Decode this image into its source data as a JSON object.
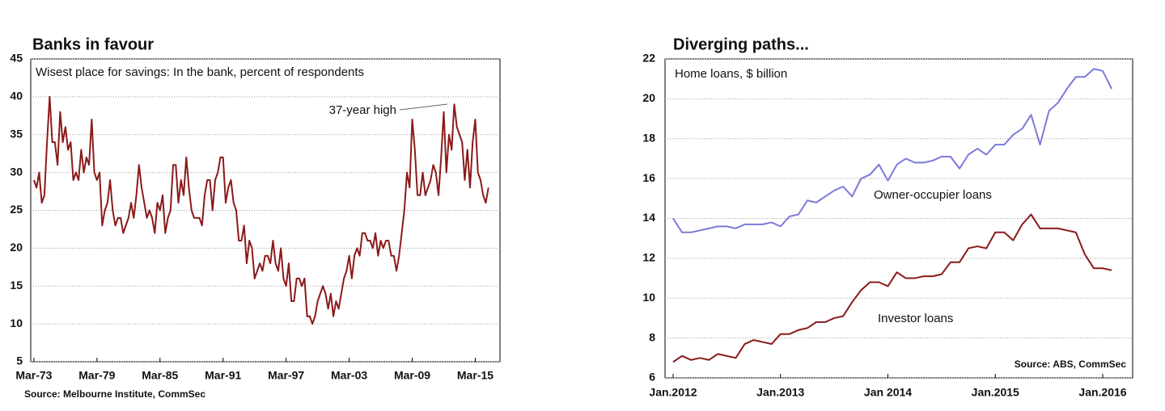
{
  "chart_data": [
    {
      "type": "line",
      "title": "Banks in favour",
      "subtitle": "Wisest place for savings: In the bank, percent of respondents",
      "annotation": "37-year high",
      "source": "Source: Melbourne Institute, CommSec",
      "color": "#8b1a1a",
      "grid": true,
      "xlim": [
        1972.95,
        2017.6
      ],
      "xticks": [
        {
          "value": 1973.25,
          "label": "Mar-73"
        },
        {
          "value": 1979.25,
          "label": "Mar-79"
        },
        {
          "value": 1985.25,
          "label": "Mar-85"
        },
        {
          "value": 1991.25,
          "label": "Mar-91"
        },
        {
          "value": 1997.25,
          "label": "Mar-97"
        },
        {
          "value": 2003.25,
          "label": "Mar-03"
        },
        {
          "value": 2009.25,
          "label": "Mar-09"
        },
        {
          "value": 2015.25,
          "label": "Mar-15"
        }
      ],
      "ylim": [
        5,
        45
      ],
      "yticks": [
        5,
        10,
        15,
        20,
        25,
        30,
        35,
        40,
        45
      ],
      "x": [
        1973.25,
        1973.5,
        1973.75,
        1974,
        1974.25,
        1974.5,
        1974.75,
        1975,
        1975.25,
        1975.5,
        1975.75,
        1976,
        1976.25,
        1976.5,
        1976.75,
        1977,
        1977.25,
        1977.5,
        1977.75,
        1978,
        1978.25,
        1978.5,
        1978.75,
        1979,
        1979.25,
        1979.5,
        1979.75,
        1980,
        1980.25,
        1980.5,
        1980.75,
        1981,
        1981.25,
        1981.5,
        1981.75,
        1982,
        1982.25,
        1982.5,
        1982.75,
        1983,
        1983.25,
        1983.5,
        1983.75,
        1984,
        1984.25,
        1984.5,
        1984.75,
        1985,
        1985.25,
        1985.5,
        1985.75,
        1986,
        1986.25,
        1986.5,
        1986.75,
        1987,
        1987.25,
        1987.5,
        1987.75,
        1988,
        1988.25,
        1988.5,
        1988.75,
        1989,
        1989.25,
        1989.5,
        1989.75,
        1990,
        1990.25,
        1990.5,
        1990.75,
        1991,
        1991.25,
        1991.5,
        1991.75,
        1992,
        1992.25,
        1992.5,
        1992.75,
        1993,
        1993.25,
        1993.5,
        1993.75,
        1994,
        1994.25,
        1994.5,
        1994.75,
        1995,
        1995.25,
        1995.5,
        1995.75,
        1996,
        1996.25,
        1996.5,
        1996.75,
        1997,
        1997.25,
        1997.5,
        1997.75,
        1998,
        1998.25,
        1998.5,
        1998.75,
        1999,
        1999.25,
        1999.5,
        1999.75,
        2000,
        2000.25,
        2000.5,
        2000.75,
        2001,
        2001.25,
        2001.5,
        2001.75,
        2002,
        2002.25,
        2002.5,
        2002.75,
        2003,
        2003.25,
        2003.5,
        2003.75,
        2004,
        2004.25,
        2004.5,
        2004.75,
        2005,
        2005.25,
        2005.5,
        2005.75,
        2006,
        2006.25,
        2006.5,
        2006.75,
        2007,
        2007.25,
        2007.5,
        2007.75,
        2008,
        2008.25,
        2008.5,
        2008.75,
        2009,
        2009.25,
        2009.5,
        2009.75,
        2010,
        2010.25,
        2010.5,
        2010.75,
        2011,
        2011.25,
        2011.5,
        2011.75,
        2012,
        2012.25,
        2012.5,
        2012.75,
        2013,
        2013.25,
        2013.5,
        2013.75,
        2014,
        2014.25,
        2014.5,
        2014.75,
        2015,
        2015.25,
        2015.5,
        2015.75,
        2016,
        2016.25,
        2016.5
      ],
      "values": [
        29,
        28,
        30,
        26,
        27,
        34,
        40,
        34,
        34,
        31,
        38,
        34,
        36,
        33,
        34,
        29,
        30,
        29,
        33,
        30,
        32,
        31,
        37,
        30,
        29,
        30,
        23,
        25,
        26,
        29,
        25,
        23,
        24,
        24,
        22,
        23,
        24,
        26,
        24,
        27,
        31,
        28,
        26,
        24,
        25,
        24,
        22,
        26,
        25,
        27,
        22,
        24,
        25,
        31,
        31,
        26,
        29,
        27,
        32,
        28,
        25,
        24,
        24,
        24,
        23,
        27,
        29,
        29,
        25,
        29,
        30,
        32,
        32,
        26,
        28,
        29,
        26,
        25,
        21,
        21,
        23,
        18,
        21,
        20,
        16,
        17,
        18,
        17,
        19,
        19,
        18,
        21,
        18,
        17,
        20,
        16,
        15,
        18,
        13,
        13,
        16,
        16,
        15,
        16,
        11,
        11,
        10,
        11,
        13,
        14,
        15,
        14,
        12,
        14,
        11,
        13,
        12,
        14,
        16,
        17,
        19,
        16,
        19,
        20,
        19,
        22,
        22,
        21,
        21,
        20,
        22,
        19,
        21,
        20,
        21,
        21,
        19,
        19,
        17,
        19,
        22,
        25,
        30,
        28,
        37,
        33,
        27,
        27,
        30,
        27,
        28,
        29,
        31,
        30,
        27,
        32,
        38,
        30,
        35,
        33,
        39,
        36,
        35,
        34,
        29,
        33,
        28,
        34,
        37,
        30,
        29,
        27,
        26,
        28
      ]
    },
    {
      "type": "line",
      "title": "Diverging paths...",
      "subtitle": "Home loans, $ billion",
      "source": "Source: ABS, CommSec",
      "grid": true,
      "categories": [
        "Jan.2012",
        null,
        null,
        null,
        null,
        null,
        null,
        null,
        null,
        null,
        null,
        null,
        "Jan.2013",
        null,
        null,
        null,
        null,
        null,
        null,
        null,
        null,
        null,
        null,
        null,
        "Jan 2014",
        null,
        null,
        null,
        null,
        null,
        null,
        null,
        null,
        null,
        null,
        null,
        "Jan.2015",
        null,
        null,
        null,
        null,
        null,
        null,
        null,
        null,
        null,
        null,
        null,
        "Jan.2016",
        null
      ],
      "ylim": [
        6,
        22
      ],
      "yticks": [
        6,
        8,
        10,
        12,
        14,
        16,
        18,
        20,
        22
      ],
      "series": [
        {
          "name": "Owner-occupier loans",
          "color": "#7b7bdb",
          "values": [
            14.0,
            13.3,
            13.3,
            13.4,
            13.5,
            13.6,
            13.6,
            13.5,
            13.7,
            13.7,
            13.7,
            13.8,
            13.6,
            14.1,
            14.2,
            14.9,
            14.8,
            15.1,
            15.4,
            15.6,
            15.1,
            16.0,
            16.2,
            16.7,
            15.9,
            16.7,
            17.0,
            16.8,
            16.8,
            16.9,
            17.1,
            17.1,
            16.5,
            17.2,
            17.5,
            17.2,
            17.7,
            17.7,
            18.2,
            18.5,
            19.2,
            17.7,
            19.4,
            19.8,
            20.5,
            21.1,
            21.1,
            21.5,
            21.4,
            20.5
          ]
        },
        {
          "name": "Investor loans",
          "color": "#8b1a1a",
          "values": [
            6.8,
            7.1,
            6.9,
            7.0,
            6.9,
            7.2,
            7.1,
            7.0,
            7.7,
            7.9,
            7.8,
            7.7,
            8.2,
            8.2,
            8.4,
            8.5,
            8.8,
            8.8,
            9.0,
            9.1,
            9.8,
            10.4,
            10.8,
            10.8,
            10.6,
            11.3,
            11.0,
            11.0,
            11.1,
            11.1,
            11.2,
            11.8,
            11.8,
            12.5,
            12.6,
            12.5,
            13.3,
            13.3,
            12.9,
            13.7,
            14.2,
            13.5,
            13.5,
            13.5,
            13.4,
            13.3,
            12.2,
            11.5,
            11.5,
            11.4
          ]
        }
      ]
    }
  ]
}
